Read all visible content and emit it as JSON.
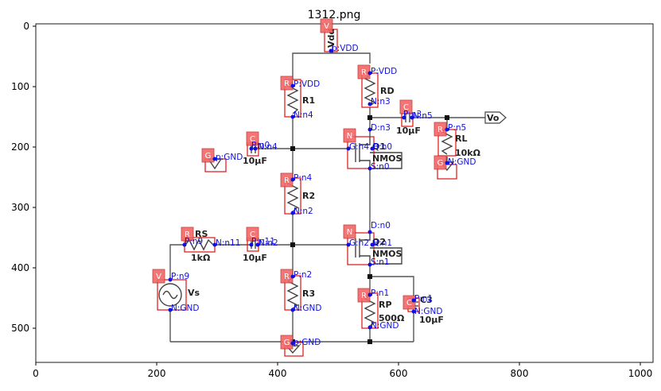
{
  "figure": {
    "title": "1312.png",
    "x_ticks": [
      "0",
      "200",
      "400",
      "600",
      "800",
      "1000"
    ],
    "y_ticks": [
      "0",
      "100",
      "200",
      "300",
      "400",
      "500"
    ]
  },
  "components": [
    {
      "name": "vdd",
      "tag": "V",
      "label": "Vdd"
    },
    {
      "name": "rd",
      "tag": "R",
      "label": "RD"
    },
    {
      "name": "r1",
      "tag": "R",
      "label": "R1"
    },
    {
      "name": "c4",
      "tag": "C",
      "label": "C4"
    },
    {
      "name": "vo",
      "tag": "",
      "label": "Vo"
    },
    {
      "name": "c1",
      "tag": "C",
      "label": "C1",
      "value": "10µF"
    },
    {
      "name": "gnd-c1",
      "tag": "G",
      "label": ""
    },
    {
      "name": "q1",
      "tag": "N",
      "label": "Q1",
      "type": "NMOS"
    },
    {
      "name": "rl",
      "tag": "R",
      "label": "RL",
      "value": "10kΩ"
    },
    {
      "name": "gnd-rl",
      "tag": "G",
      "label": ""
    },
    {
      "name": "r2",
      "tag": "R",
      "label": "R2"
    },
    {
      "name": "rs",
      "tag": "R",
      "label": "RS",
      "value": "1kΩ"
    },
    {
      "name": "c2",
      "tag": "C",
      "label": "C2",
      "value": "10µF"
    },
    {
      "name": "q2",
      "tag": "N",
      "label": "Q2",
      "type": "NMOS"
    },
    {
      "name": "vs",
      "tag": "V",
      "label": "Vs"
    },
    {
      "name": "r3",
      "tag": "R",
      "label": "R3"
    },
    {
      "name": "rp",
      "tag": "R",
      "label": "RP",
      "value": "500Ω"
    },
    {
      "name": "c3",
      "tag": "C",
      "label": "C3",
      "value": "10µF"
    },
    {
      "name": "gnd-main",
      "tag": "G",
      "label": ""
    }
  ],
  "c4_value": "10µF",
  "pins": [
    "p:VDD",
    "P:VDD",
    "N:n3",
    "P:VDD",
    "N:n4",
    "P:n3",
    "N:n5",
    "P:n5",
    "N:GND",
    "D:n3",
    "G:n4",
    "S:n0",
    "B:n0",
    "P:n0",
    "N:n4",
    "p:GND",
    "P:n4",
    "N:n2",
    "D:n0",
    "G:n2",
    "S:n1",
    "B:n1",
    "P:n9",
    "N:n11",
    "P:n11",
    "N:n2",
    "P:n9",
    "N:GND",
    "P:n2",
    "N:GND",
    "P:n1",
    "N:GND",
    "P:n1",
    "N:GND",
    "p:GND"
  ]
}
